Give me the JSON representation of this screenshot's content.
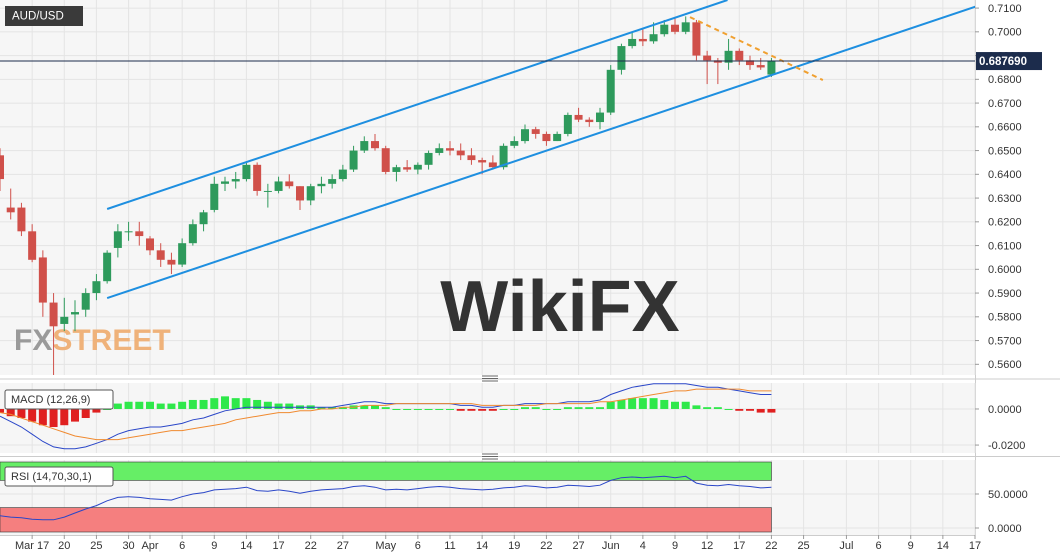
{
  "chart_data": [
    {
      "type": "candlestick",
      "title": "AUD/USD",
      "watermark": "WikiFX",
      "logo": {
        "fx": "FX",
        "street": "STREET"
      },
      "up_color": "#2e9a5c",
      "down_color": "#d0504a",
      "xlim": [
        -2,
        89
      ],
      "xticks": [
        {
          "value": 1,
          "label": "Mar 17"
        },
        {
          "value": 4,
          "label": "20"
        },
        {
          "value": 7,
          "label": "25"
        },
        {
          "value": 10,
          "label": "30"
        },
        {
          "value": 12,
          "label": "Apr"
        },
        {
          "value": 15,
          "label": "6"
        },
        {
          "value": 18,
          "label": "9"
        },
        {
          "value": 21,
          "label": "14"
        },
        {
          "value": 24,
          "label": "17"
        },
        {
          "value": 27,
          "label": "22"
        },
        {
          "value": 30,
          "label": "27"
        },
        {
          "value": 34,
          "label": "May"
        },
        {
          "value": 37,
          "label": "6"
        },
        {
          "value": 40,
          "label": "11"
        },
        {
          "value": 43,
          "label": "14"
        },
        {
          "value": 46,
          "label": "19"
        },
        {
          "value": 49,
          "label": "22"
        },
        {
          "value": 52,
          "label": "27"
        },
        {
          "value": 55,
          "label": "Jun"
        },
        {
          "value": 58,
          "label": "4"
        },
        {
          "value": 61,
          "label": "9"
        },
        {
          "value": 64,
          "label": "12"
        },
        {
          "value": 67,
          "label": "17"
        },
        {
          "value": 70,
          "label": "22"
        },
        {
          "value": 73,
          "label": "25"
        },
        {
          "value": 77,
          "label": "Jul"
        },
        {
          "value": 80,
          "label": "6"
        },
        {
          "value": 83,
          "label": "9"
        },
        {
          "value": 86,
          "label": "14"
        },
        {
          "value": 89,
          "label": "17"
        }
      ],
      "ylim": [
        0.5555,
        0.7134
      ],
      "yticks": [
        {
          "value": 0.71,
          "label": "0.7100"
        },
        {
          "value": 0.7,
          "label": "0.7000"
        },
        {
          "value": 0.69,
          "label": "0.6900"
        },
        {
          "value": 0.68,
          "label": "0.6800"
        },
        {
          "value": 0.67,
          "label": "0.6700"
        },
        {
          "value": 0.66,
          "label": "0.6600"
        },
        {
          "value": 0.65,
          "label": "0.6500"
        },
        {
          "value": 0.64,
          "label": "0.6400"
        },
        {
          "value": 0.63,
          "label": "0.6300"
        },
        {
          "value": 0.62,
          "label": "0.6200"
        },
        {
          "value": 0.61,
          "label": "0.6100"
        },
        {
          "value": 0.6,
          "label": "0.6000"
        },
        {
          "value": 0.59,
          "label": "0.5900"
        },
        {
          "value": 0.58,
          "label": "0.5800"
        },
        {
          "value": 0.57,
          "label": "0.5700"
        },
        {
          "value": 0.56,
          "label": "0.5600"
        }
      ],
      "last_price": {
        "value": 0.68769,
        "label": "0.687690"
      },
      "x": [
        -2,
        -1,
        0,
        1,
        2,
        3,
        4,
        5,
        6,
        7,
        8,
        9,
        10,
        11,
        12,
        13,
        14,
        15,
        16,
        17,
        18,
        19,
        20,
        21,
        22,
        23,
        24,
        25,
        26,
        27,
        28,
        29,
        30,
        31,
        32,
        33,
        34,
        35,
        36,
        37,
        38,
        39,
        40,
        41,
        42,
        43,
        44,
        45,
        46,
        47,
        48,
        49,
        50,
        51,
        52,
        53,
        54,
        55,
        56,
        57,
        58,
        59,
        60,
        61,
        62,
        63,
        64,
        65,
        66,
        67,
        68,
        69,
        70
      ],
      "open": [
        0.648,
        0.626,
        0.626,
        0.616,
        0.605,
        0.586,
        0.577,
        0.581,
        0.583,
        0.59,
        0.595,
        0.609,
        0.616,
        0.616,
        0.613,
        0.608,
        0.604,
        0.602,
        0.611,
        0.619,
        0.625,
        0.636,
        0.637,
        0.638,
        0.644,
        0.633,
        0.633,
        0.637,
        0.635,
        0.629,
        0.635,
        0.636,
        0.638,
        0.642,
        0.65,
        0.654,
        0.651,
        0.641,
        0.643,
        0.642,
        0.644,
        0.649,
        0.651,
        0.65,
        0.648,
        0.646,
        0.645,
        0.643,
        0.652,
        0.654,
        0.659,
        0.657,
        0.654,
        0.657,
        0.665,
        0.663,
        0.662,
        0.666,
        0.684,
        0.694,
        0.697,
        0.696,
        0.699,
        0.703,
        0.7,
        0.704,
        0.69,
        0.688,
        0.687,
        0.692,
        0.688,
        0.686,
        0.682
      ],
      "high": [
        0.651,
        0.634,
        0.628,
        0.619,
        0.608,
        0.59,
        0.588,
        0.587,
        0.592,
        0.598,
        0.608,
        0.619,
        0.62,
        0.62,
        0.614,
        0.611,
        0.607,
        0.613,
        0.621,
        0.625,
        0.639,
        0.639,
        0.641,
        0.645,
        0.645,
        0.636,
        0.639,
        0.64,
        0.635,
        0.636,
        0.639,
        0.64,
        0.644,
        0.652,
        0.656,
        0.657,
        0.652,
        0.644,
        0.646,
        0.645,
        0.65,
        0.653,
        0.654,
        0.653,
        0.651,
        0.647,
        0.648,
        0.653,
        0.656,
        0.661,
        0.66,
        0.658,
        0.658,
        0.666,
        0.668,
        0.664,
        0.668,
        0.686,
        0.695,
        0.7,
        0.701,
        0.704,
        0.705,
        0.706,
        0.7065,
        0.705,
        0.692,
        0.689,
        0.697,
        0.693,
        0.69,
        0.689,
        0.689
      ],
      "low": [
        0.633,
        0.621,
        0.614,
        0.603,
        0.58,
        0.551,
        0.574,
        0.574,
        0.58,
        0.587,
        0.594,
        0.605,
        0.612,
        0.61,
        0.606,
        0.601,
        0.598,
        0.601,
        0.61,
        0.616,
        0.624,
        0.633,
        0.634,
        0.637,
        0.631,
        0.626,
        0.632,
        0.634,
        0.625,
        0.627,
        0.632,
        0.634,
        0.637,
        0.641,
        0.649,
        0.65,
        0.64,
        0.637,
        0.641,
        0.64,
        0.642,
        0.648,
        0.648,
        0.646,
        0.644,
        0.64,
        0.642,
        0.642,
        0.651,
        0.653,
        0.655,
        0.652,
        0.654,
        0.656,
        0.662,
        0.66,
        0.659,
        0.665,
        0.682,
        0.693,
        0.694,
        0.695,
        0.698,
        0.699,
        0.699,
        0.688,
        0.678,
        0.678,
        0.684,
        0.686,
        0.684,
        0.684,
        0.681
      ],
      "close": [
        0.638,
        0.624,
        0.616,
        0.604,
        0.586,
        0.576,
        0.58,
        0.582,
        0.59,
        0.595,
        0.607,
        0.616,
        0.616,
        0.614,
        0.608,
        0.604,
        0.602,
        0.611,
        0.619,
        0.624,
        0.636,
        0.637,
        0.638,
        0.644,
        0.633,
        0.633,
        0.637,
        0.635,
        0.629,
        0.635,
        0.636,
        0.638,
        0.642,
        0.65,
        0.654,
        0.651,
        0.641,
        0.643,
        0.642,
        0.644,
        0.649,
        0.651,
        0.65,
        0.648,
        0.646,
        0.645,
        0.643,
        0.652,
        0.654,
        0.659,
        0.657,
        0.654,
        0.657,
        0.665,
        0.663,
        0.662,
        0.666,
        0.684,
        0.694,
        0.697,
        0.696,
        0.699,
        0.703,
        0.7,
        0.704,
        0.69,
        0.688,
        0.687,
        0.692,
        0.688,
        0.686,
        0.685,
        0.68769
      ],
      "trendlines": [
        {
          "color": "#1e8fe0",
          "dashed": false,
          "x": [
            8,
            65.9
          ],
          "y": [
            0.6254,
            0.7134
          ]
        },
        {
          "color": "#1e8fe0",
          "dashed": false,
          "x": [
            8,
            89.5
          ],
          "y": [
            0.5879,
            0.7113
          ]
        },
        {
          "color": "#f0a030",
          "dashed": true,
          "x": [
            62.4,
            74.8
          ],
          "y": [
            0.7062,
            0.6797
          ]
        }
      ]
    },
    {
      "type": "macd",
      "title": "MACD (12,26,9)",
      "ylim": [
        -0.0244,
        0.0144
      ],
      "yticks": [
        {
          "value": 0,
          "label": "0.0000"
        },
        {
          "value": -0.02,
          "label": "-0.0200"
        }
      ],
      "series": [
        {
          "color": "#2a46c8",
          "values": [
            -0.004,
            -0.007,
            -0.01,
            -0.014,
            -0.018,
            -0.021,
            -0.022,
            -0.022,
            -0.021,
            -0.019,
            -0.017,
            -0.014,
            -0.012,
            -0.011,
            -0.01,
            -0.01,
            -0.009,
            -0.008,
            -0.006,
            -0.005,
            -0.003,
            -0.001,
            0.0,
            0.001,
            0.001,
            0.001,
            0.001,
            0.001,
            0.001,
            0.001,
            0.001,
            0.001,
            0.002,
            0.003,
            0.004,
            0.004,
            0.003,
            0.003,
            0.003,
            0.003,
            0.003,
            0.003,
            0.003,
            0.002,
            0.002,
            0.001,
            0.001,
            0.002,
            0.002,
            0.003,
            0.003,
            0.003,
            0.003,
            0.004,
            0.004,
            0.004,
            0.005,
            0.008,
            0.01,
            0.012,
            0.013,
            0.014,
            0.014,
            0.014,
            0.014,
            0.013,
            0.012,
            0.012,
            0.011,
            0.01,
            0.009,
            0.008,
            0.008
          ]
        },
        {
          "color": "#f08a30",
          "values": [
            -0.002,
            -0.003,
            -0.005,
            -0.007,
            -0.009,
            -0.011,
            -0.013,
            -0.015,
            -0.016,
            -0.017,
            -0.017,
            -0.017,
            -0.016,
            -0.015,
            -0.014,
            -0.013,
            -0.012,
            -0.012,
            -0.011,
            -0.01,
            -0.009,
            -0.008,
            -0.006,
            -0.005,
            -0.004,
            -0.003,
            -0.002,
            -0.002,
            -0.001,
            -0.001,
            0.0,
            0.0,
            0.001,
            0.001,
            0.002,
            0.002,
            0.002,
            0.003,
            0.003,
            0.003,
            0.003,
            0.003,
            0.003,
            0.003,
            0.003,
            0.002,
            0.002,
            0.002,
            0.002,
            0.002,
            0.002,
            0.003,
            0.003,
            0.003,
            0.003,
            0.003,
            0.004,
            0.004,
            0.005,
            0.006,
            0.007,
            0.008,
            0.009,
            0.01,
            0.01,
            0.011,
            0.011,
            0.011,
            0.011,
            0.011,
            0.01,
            0.01,
            0.01
          ]
        }
      ],
      "histogram": {
        "up_color": "#2ee84a",
        "down_color": "#e02020",
        "values": [
          -0.002,
          -0.004,
          -0.005,
          -0.007,
          -0.009,
          -0.01,
          -0.009,
          -0.007,
          -0.005,
          -0.002,
          0.0,
          0.003,
          0.004,
          0.004,
          0.004,
          0.003,
          0.003,
          0.004,
          0.005,
          0.005,
          0.006,
          0.007,
          0.006,
          0.006,
          0.005,
          0.004,
          0.003,
          0.003,
          0.002,
          0.002,
          0.001,
          0.001,
          0.001,
          0.002,
          0.002,
          0.002,
          0.001,
          0.0,
          0.0,
          0.0,
          0.0,
          0.0,
          0.0,
          -0.001,
          -0.001,
          -0.001,
          -0.001,
          0.0,
          0.0,
          0.001,
          0.001,
          0.0,
          0.0,
          0.001,
          0.001,
          0.001,
          0.001,
          0.004,
          0.005,
          0.006,
          0.006,
          0.006,
          0.005,
          0.004,
          0.004,
          0.002,
          0.001,
          0.001,
          0.0,
          -0.001,
          -0.001,
          -0.002,
          -0.002
        ]
      }
    },
    {
      "type": "rsi",
      "title": "RSI (14,70,30,1)",
      "ylim": [
        -10.3,
        100
      ],
      "yticks": [
        {
          "value": 50,
          "label": "50.0000"
        },
        {
          "value": 0,
          "label": "0.0000"
        }
      ],
      "levels": [
        {
          "value": 70,
          "color": "#66ee66"
        },
        {
          "value": 30,
          "color": "#f57f7f"
        }
      ],
      "series": [
        {
          "color": "#2a46c8",
          "values": [
            18,
            16,
            15,
            13,
            12,
            12,
            16,
            22,
            28,
            33,
            40,
            45,
            46,
            45,
            43,
            42,
            41,
            46,
            50,
            52,
            56,
            57,
            58,
            60,
            55,
            54,
            56,
            54,
            51,
            54,
            56,
            57,
            58,
            61,
            62,
            60,
            56,
            57,
            56,
            58,
            60,
            61,
            60,
            58,
            57,
            56,
            57,
            59,
            60,
            62,
            61,
            59,
            60,
            63,
            62,
            61,
            63,
            70,
            74,
            75,
            74,
            75,
            76,
            74,
            76,
            66,
            63,
            62,
            64,
            62,
            61,
            59,
            60
          ]
        }
      ]
    }
  ]
}
